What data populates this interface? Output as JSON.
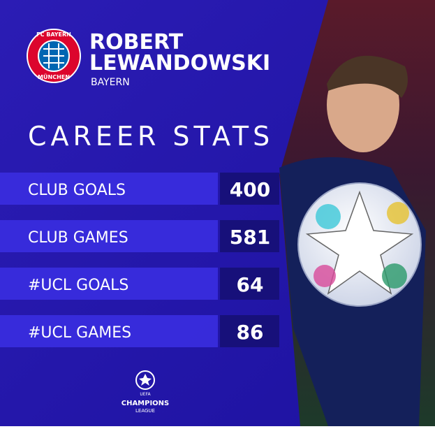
{
  "header": {
    "name_line1": "ROBERT",
    "name_line2": "LEWANDOWSKI",
    "club": "BAYERN",
    "logo_top": "FC BAYERN",
    "logo_bottom": "MÜNCHEN"
  },
  "title": "CAREER STATS",
  "stats": [
    {
      "label": "CLUB GOALS",
      "value": "400"
    },
    {
      "label": "CLUB GAMES",
      "value": "581"
    },
    {
      "label": "#UCL GOALS",
      "value": "64"
    },
    {
      "label": "#UCL GAMES",
      "value": "86"
    }
  ],
  "footer": {
    "line1": "UEFA",
    "line2": "CHAMPIONS",
    "line3": "LEAGUE"
  }
}
